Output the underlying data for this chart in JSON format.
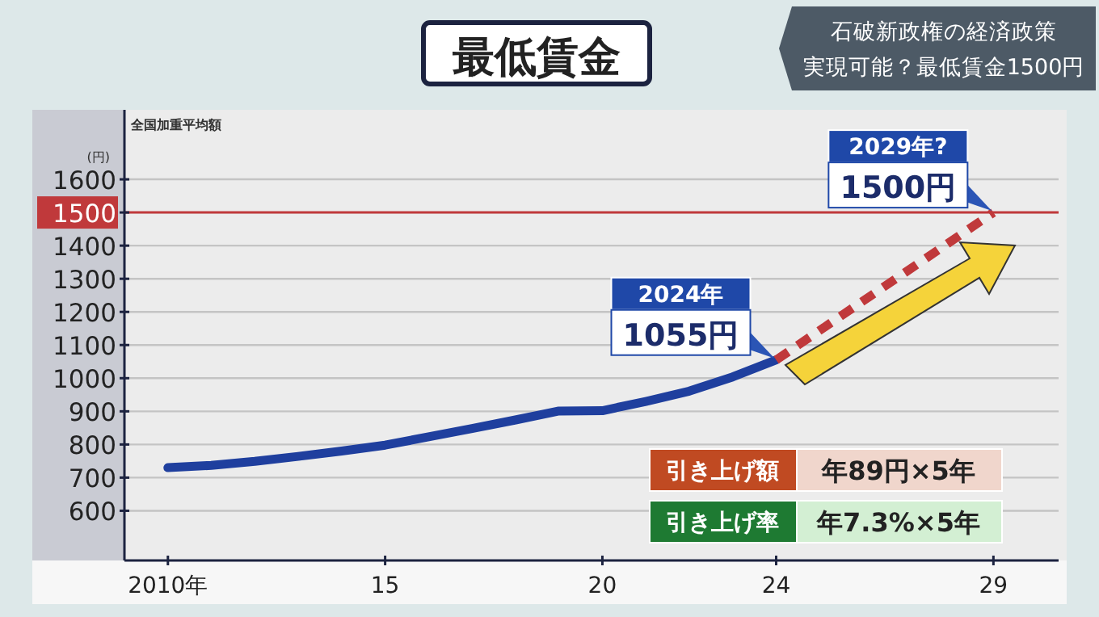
{
  "chart_data": {
    "type": "line",
    "title": "最低賃金",
    "subtitle": "石破新政権の経済政策",
    "ylabel": "(円)",
    "xlim": [
      2009,
      2030.5
    ],
    "ylim": [
      450,
      1800
    ],
    "xticks": [
      {
        "value": 2010,
        "label": "2010年"
      },
      {
        "value": 2015,
        "label": "15"
      },
      {
        "value": 2020,
        "label": "20"
      },
      {
        "value": 2024,
        "label": "24"
      },
      {
        "value": 2029,
        "label": "29"
      }
    ],
    "yticks": [
      600,
      700,
      800,
      900,
      1000,
      1100,
      1200,
      1300,
      1400,
      1500,
      1600
    ],
    "grid": "y",
    "marker": "none",
    "series": [
      {
        "color": "#1f3f9e",
        "line_style": "solid",
        "x": [
          2010,
          2011,
          2012,
          2013,
          2014,
          2015,
          2016,
          2017,
          2018,
          2019,
          2020,
          2021,
          2022,
          2023,
          2024
        ],
        "values": [
          730,
          737,
          749,
          764,
          780,
          798,
          823,
          848,
          874,
          901,
          902,
          930,
          961,
          1004,
          1055
        ]
      },
      {
        "color": "#c0393b",
        "line_style": "dashed",
        "x": [
          2024,
          2029
        ],
        "values": [
          1055,
          1500
        ]
      }
    ],
    "ref_lines": [
      {
        "axis": "y",
        "value": 1500,
        "color": "#c0393b"
      }
    ],
    "annotations": [
      "2024年",
      {
        "text": "1055円",
        "x": 2024,
        "y": 1055
      },
      "2029年?",
      {
        "text": "1500円",
        "x": 2029,
        "y": 1500
      },
      "実現可能？最低賃金1500円",
      "全国加重平均額",
      "引き上げ額",
      "年89円×5年",
      "引き上げ率",
      "年7.3%×5年"
    ]
  }
}
